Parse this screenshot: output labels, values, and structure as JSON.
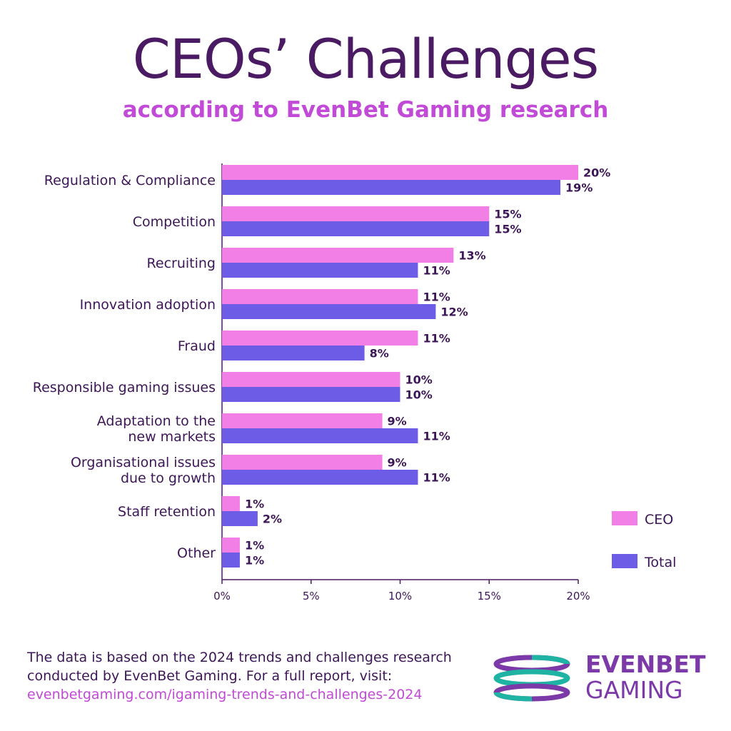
{
  "title": "CEOs’ Challenges",
  "subtitle": "according to EvenBet Gaming research",
  "footer": {
    "line1": "The data is based on the 2024 trends and challenges research",
    "line2": "conducted by EvenBet Gaming. For a full report, visit:",
    "link": "evenbetgaming.com/igaming-trends-and-challenges-2024"
  },
  "logo": {
    "line1": "EVENBET",
    "line2": "GAMING",
    "colors": {
      "purple": "#7b3aa8",
      "teal": "#1fb3a3"
    }
  },
  "chart_data": {
    "type": "bar",
    "orientation": "horizontal",
    "categories": [
      [
        "Regulation & Compliance"
      ],
      [
        "Competition"
      ],
      [
        "Recruiting"
      ],
      [
        "Innovation adoption"
      ],
      [
        "Fraud"
      ],
      [
        "Responsible gaming issues"
      ],
      [
        "Adaptation to the",
        "new markets"
      ],
      [
        "Organisational issues",
        "due to growth"
      ],
      [
        "Staff retention"
      ],
      [
        "Other"
      ]
    ],
    "series": [
      {
        "name": "CEO",
        "color": "#f27fe6",
        "values": [
          20,
          15,
          13,
          11,
          11,
          10,
          9,
          9,
          1,
          1
        ]
      },
      {
        "name": "Total",
        "color": "#6d5ce6",
        "values": [
          19,
          15,
          11,
          12,
          8,
          10,
          11,
          11,
          2,
          1
        ]
      }
    ],
    "value_suffix": "%",
    "xlim": [
      0,
      20
    ],
    "xticks": [
      "0%",
      "5%",
      "10%",
      "15%",
      "20%"
    ],
    "legend_position": "bottom-right",
    "grid": false
  }
}
